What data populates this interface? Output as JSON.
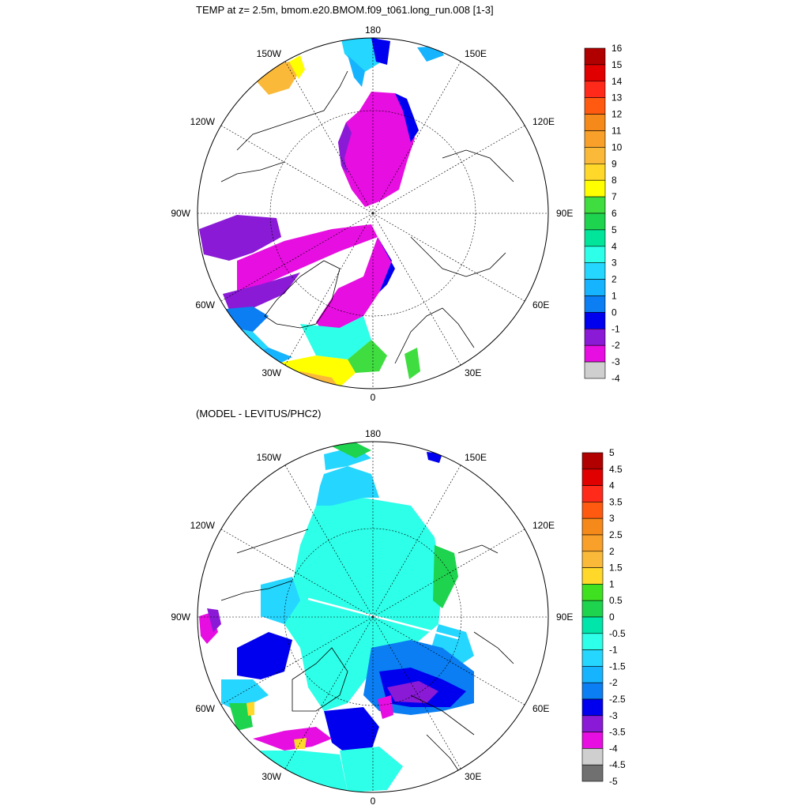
{
  "top_panel": {
    "title": "TEMP at z=   2.5m, bmom.e20.BMOM.f09_t061.long_run.008 [1-3]",
    "lon_labels": {
      "n": "180",
      "s": "0",
      "w90": "90W",
      "e90": "90E",
      "w150": "150W",
      "e150": "150E",
      "w120": "120W",
      "e120": "120E",
      "w60": "60W",
      "e60": "60E",
      "w30": "30W",
      "e30": "30E"
    },
    "colorbar": {
      "labels": [
        "16",
        "15",
        "14",
        "13",
        "12",
        "11",
        "10",
        "9",
        "8",
        "7",
        "6",
        "5",
        "4",
        "3",
        "2",
        "1",
        "0",
        "-1",
        "-2",
        "-3",
        "-4"
      ],
      "colors": [
        "#b00000",
        "#e00000",
        "#ff2a1a",
        "#ff5a10",
        "#f58a1a",
        "#f9a02a",
        "#fbb93a",
        "#ffd82a",
        "#ffff00",
        "#3fdd3f",
        "#1ed34e",
        "#00e59a",
        "#2dffe8",
        "#25d6ff",
        "#16b4ff",
        "#0a7ef2",
        "#0000ee",
        "#8a1ad6",
        "#e60ee0",
        "#cfcfcf"
      ]
    }
  },
  "bottom_panel": {
    "title": "(MODEL - LEVITUS/PHC2)",
    "lon_labels": {
      "n": "180",
      "s": "0",
      "w90": "90W",
      "e90": "90E",
      "w150": "150W",
      "e150": "150E",
      "w120": "120W",
      "e120": "120E",
      "w60": "60W",
      "e60": "60E",
      "w30": "30W",
      "e30": "30E"
    },
    "colorbar": {
      "labels": [
        "5",
        "4.5",
        "4",
        "3.5",
        "3",
        "2.5",
        "2",
        "1.5",
        "1",
        "0.5",
        "0",
        "-0.5",
        "-1",
        "-1.5",
        "-2",
        "-2.5",
        "-3",
        "-3.5",
        "-4",
        "-4.5",
        "-5"
      ],
      "colors": [
        "#b00000",
        "#e00000",
        "#ff2a1a",
        "#ff5a10",
        "#f58a1a",
        "#f9a02a",
        "#fbb93a",
        "#ffd82a",
        "#3fe020",
        "#1ed34e",
        "#00e5aa",
        "#2dffe8",
        "#25d6ff",
        "#16b4ff",
        "#0a7ef2",
        "#0000ee",
        "#8a1ad6",
        "#e60ee0",
        "#cfcfcf",
        "#707070"
      ]
    }
  }
}
